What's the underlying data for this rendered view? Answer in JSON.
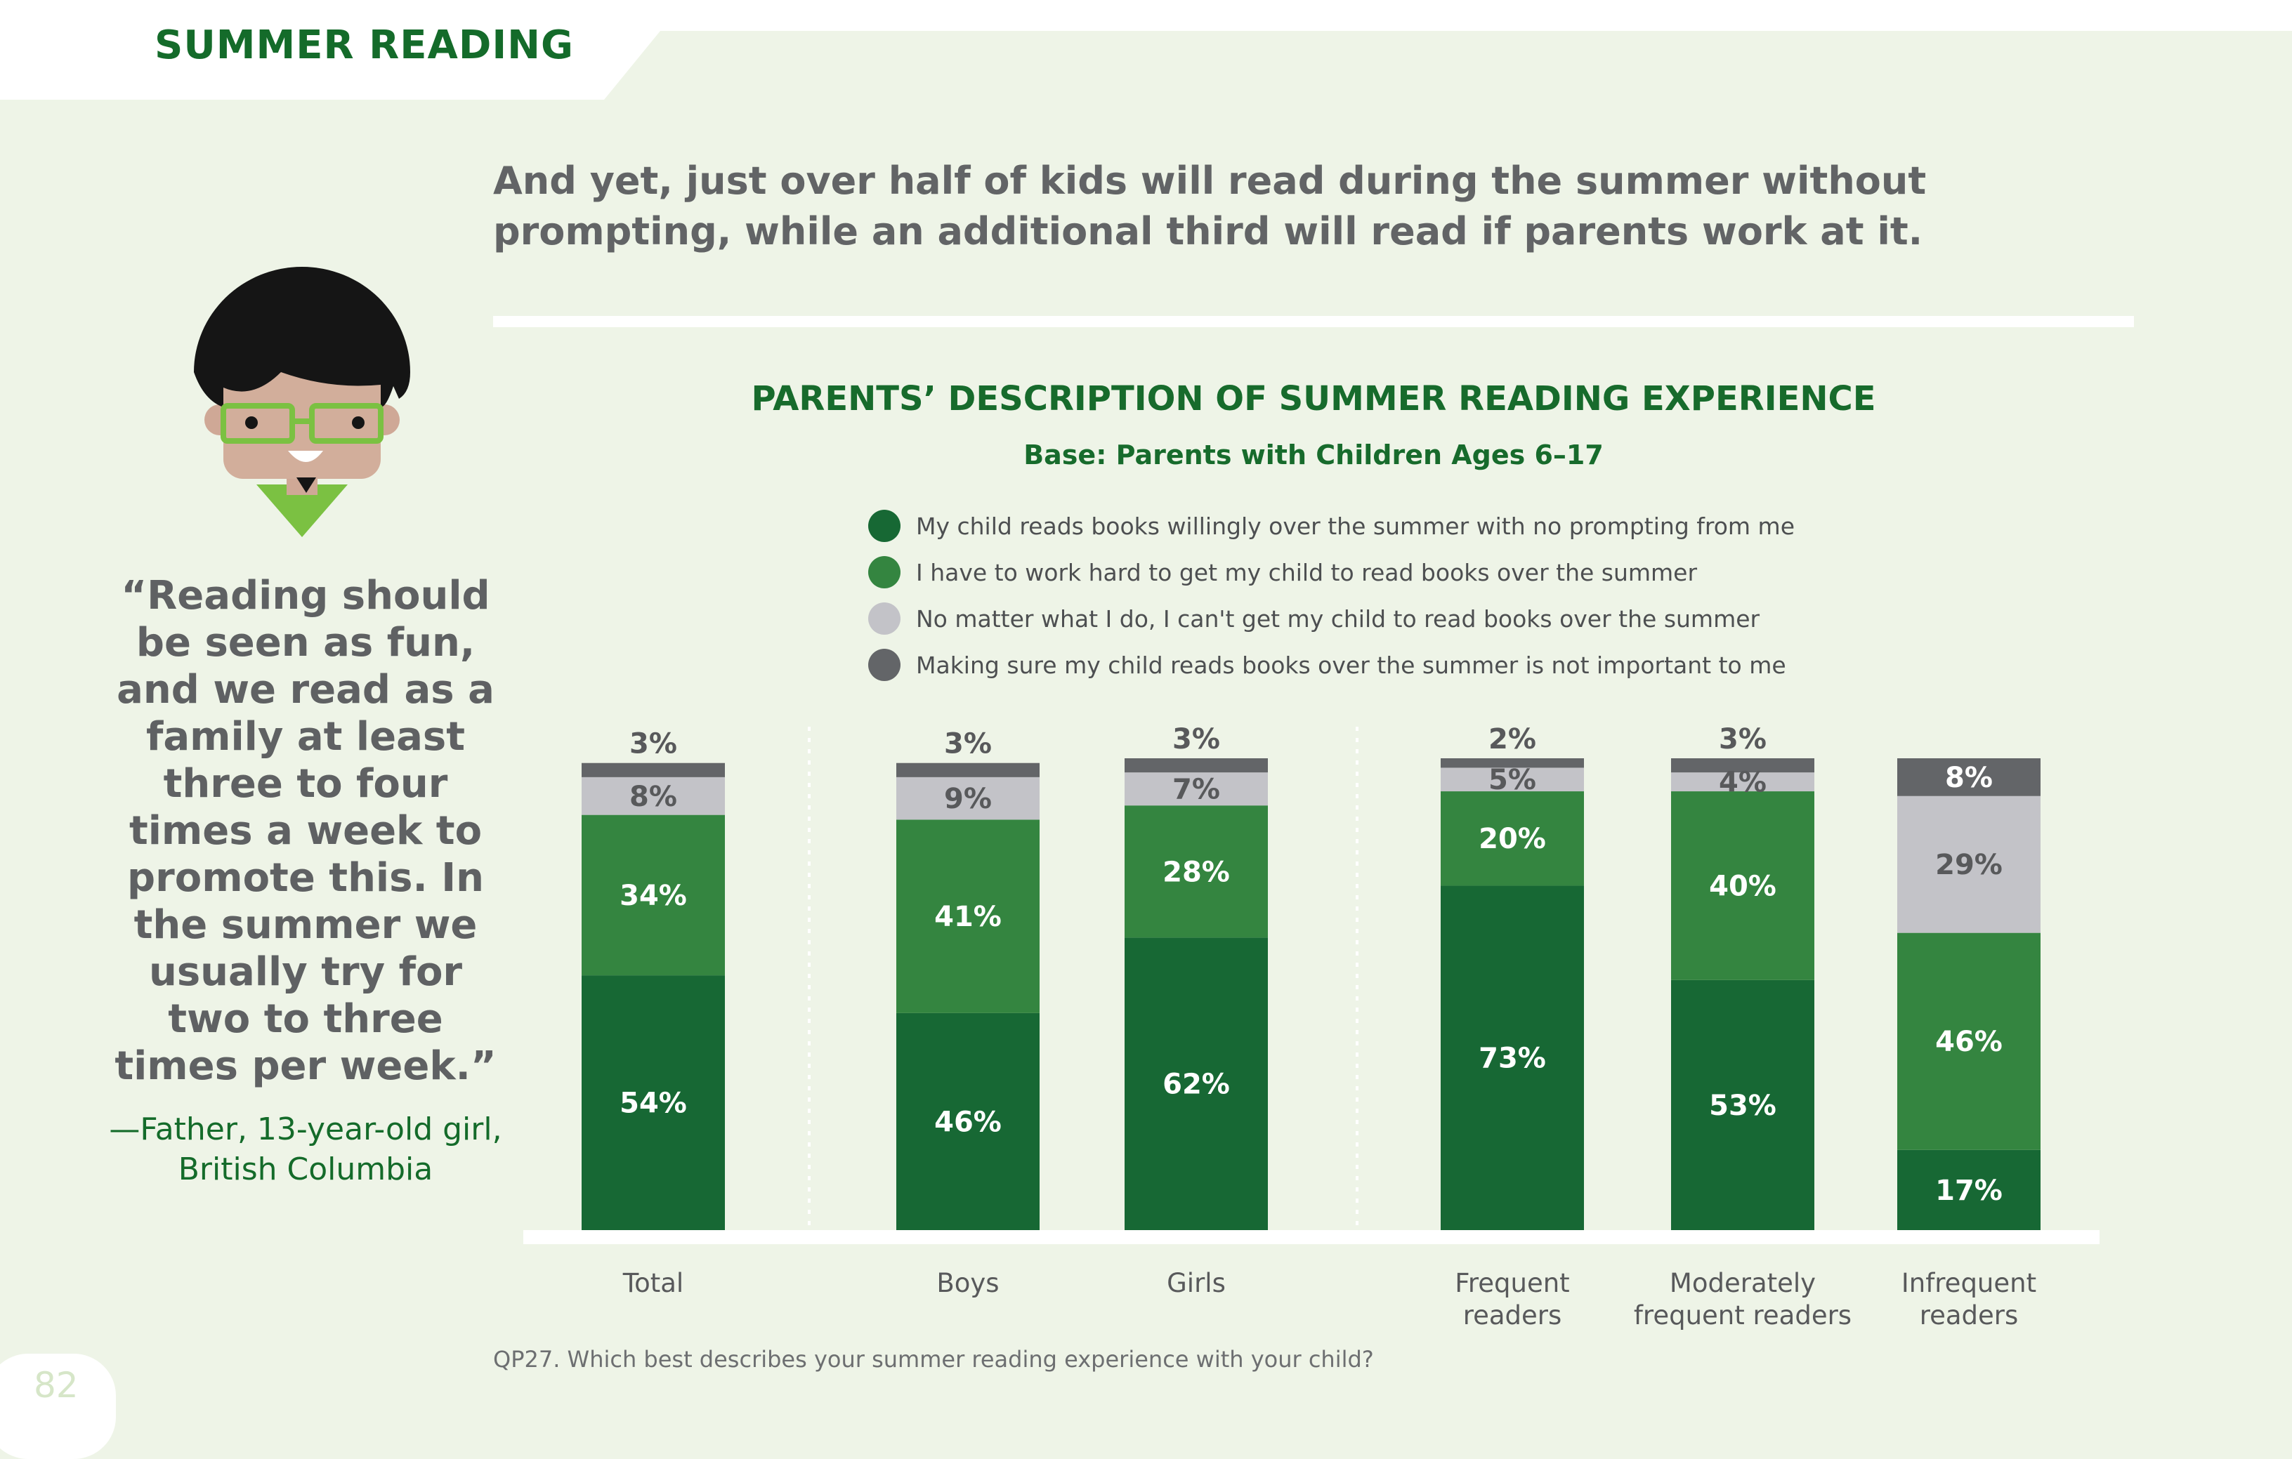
{
  "header": {
    "section_title": "SUMMER READING"
  },
  "headline": "And yet, just over half of kids will read during the summer without prompting, while an additional third will read if parents work at it.",
  "quote": {
    "text": "“Reading should be seen as fun, and we read as a family at least three to four times a week to promote this. In the summer we usually try for two to three times per week.”",
    "attribution_line1": "—Father, 13-year-old girl,",
    "attribution_line2": "British Columbia"
  },
  "footnote": "QP27. Which best describes your summer reading experience with your child?",
  "page_number": "82",
  "colors": {
    "no_prompting": "#176834",
    "work_hard": "#348540",
    "cant_get": "#c3c3c8",
    "not_important": "#636568",
    "background": "#eef4e7"
  },
  "chart_data": {
    "type": "bar",
    "stacked": true,
    "title": "PARENTS’ DESCRIPTION OF SUMMER READING EXPERIENCE",
    "subtitle": "Base: Parents with Children Ages 6–17",
    "ylim": [
      0,
      100
    ],
    "categories": [
      [
        "Total"
      ],
      [
        "Boys"
      ],
      [
        "Girls"
      ],
      [
        "Frequent",
        "readers"
      ],
      [
        "Moderately",
        "frequent readers"
      ],
      [
        "Infrequent",
        "readers"
      ]
    ],
    "series": [
      {
        "name": "My child reads books willingly over the summer with no prompting from me",
        "values": [
          54,
          46,
          62,
          73,
          53,
          17
        ]
      },
      {
        "name": "I have to work hard to get my child to read books over the summer",
        "values": [
          34,
          41,
          28,
          20,
          40,
          46
        ]
      },
      {
        "name": "No matter what I do, I can't get my child to read books over the summer",
        "values": [
          8,
          9,
          7,
          5,
          4,
          29
        ]
      },
      {
        "name": "Making sure my child reads books over the summer is not important to me",
        "values": [
          3,
          3,
          3,
          2,
          3,
          8
        ]
      }
    ],
    "value_labels": [
      [
        "54%",
        "34%",
        "8%",
        "3%"
      ],
      [
        "46%",
        "41%",
        "9%",
        "3%"
      ],
      [
        "62%",
        "28%",
        "7%",
        "3%"
      ],
      [
        "73%",
        "20%",
        "5%",
        "2%"
      ],
      [
        "53%",
        "40%",
        "4%",
        "3%"
      ],
      [
        "17%",
        "46%",
        "29%",
        "8%"
      ]
    ],
    "legend_position": "top",
    "grid": false
  }
}
